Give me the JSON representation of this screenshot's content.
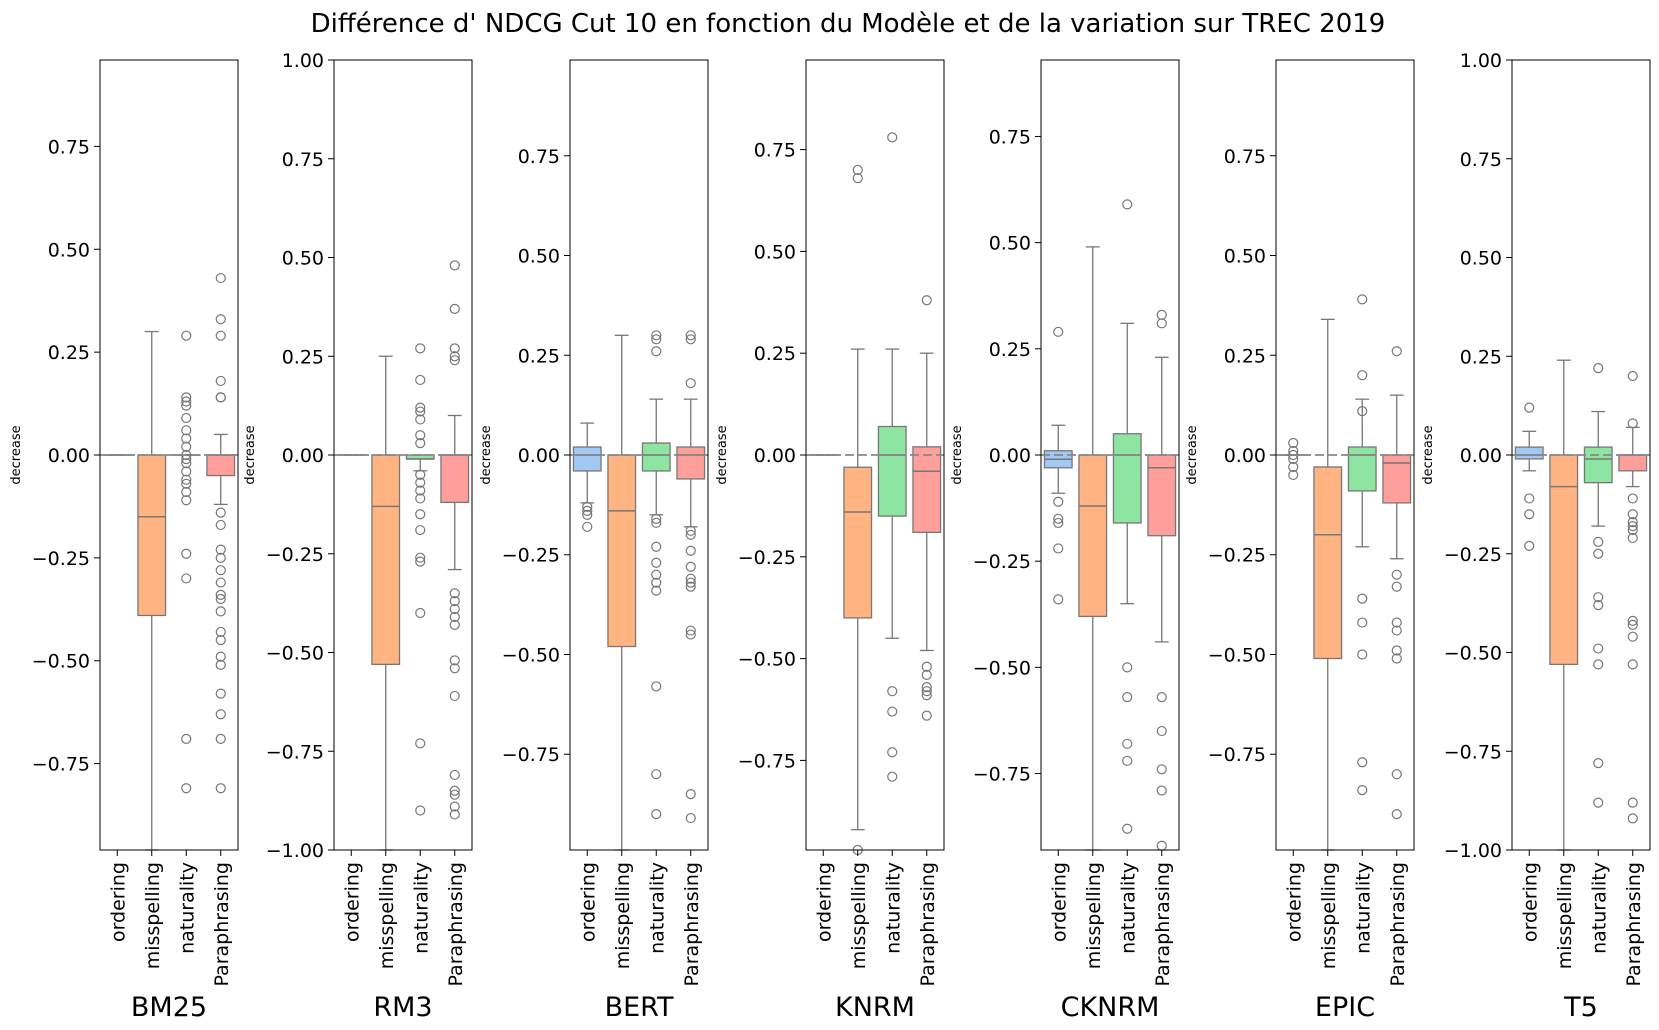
{
  "chart_data": {
    "type": "boxplot",
    "title": "Différence d' NDCG Cut 10 en fonction du Modèle et de la variation sur TREC 2019",
    "ylabel": "decrease",
    "categories": [
      "ordering",
      "misspelling",
      "naturality",
      "Paraphrasing"
    ],
    "colors": {
      "ordering": "#a1c9f4",
      "misspelling": "#ffb482",
      "naturality": "#8de5a1",
      "Paraphrasing": "#ff9f9b"
    },
    "reference_line": 0,
    "panels": [
      {
        "model": "BM25",
        "ylim": [
          -0.96,
          0.96
        ],
        "yticks": [
          -0.75,
          -0.5,
          -0.25,
          0.0,
          0.25,
          0.5,
          0.75
        ],
        "yticklabels": [
          "−0.75",
          "−0.50",
          "−0.25",
          "0.00",
          "0.25",
          "0.50",
          "0.75"
        ],
        "boxes": [
          {
            "category": "ordering",
            "q1": 0,
            "median": 0,
            "q3": 0,
            "whislo": 0,
            "whishi": 0,
            "fliers": []
          },
          {
            "category": "misspelling",
            "q1": -0.39,
            "median": -0.15,
            "q3": 0,
            "whislo": -0.96,
            "whishi": 0.3,
            "fliers": []
          },
          {
            "category": "naturality",
            "q1": 0,
            "median": 0,
            "q3": 0,
            "whislo": 0,
            "whishi": 0,
            "fliers": [
              0.29,
              0.14,
              0.13,
              0.12,
              0.09,
              0.06,
              0.04,
              0.02,
              0.0,
              -0.01,
              -0.02,
              -0.04,
              -0.06,
              -0.07,
              -0.09,
              -0.11,
              -0.24,
              -0.3,
              -0.69,
              -0.81
            ]
          },
          {
            "category": "Paraphrasing",
            "q1": -0.05,
            "median": 0,
            "q3": 0,
            "whislo": -0.12,
            "whishi": 0.05,
            "fliers": [
              0.43,
              0.33,
              0.29,
              0.18,
              0.14,
              0.14,
              -0.14,
              -0.17,
              -0.23,
              -0.25,
              -0.28,
              -0.31,
              -0.34,
              -0.35,
              -0.38,
              -0.43,
              -0.45,
              -0.49,
              -0.51,
              -0.58,
              -0.63,
              -0.69,
              -0.81
            ]
          }
        ]
      },
      {
        "model": "RM3",
        "ylim": [
          -1.0,
          1.0
        ],
        "yticks": [
          -1.0,
          -0.75,
          -0.5,
          -0.25,
          0.0,
          0.25,
          0.5,
          0.75,
          1.0
        ],
        "yticklabels": [
          "−1.00",
          "−0.75",
          "−0.50",
          "−0.25",
          "0.00",
          "0.25",
          "0.50",
          "0.75",
          "1.00"
        ],
        "boxes": [
          {
            "category": "ordering",
            "q1": 0,
            "median": 0,
            "q3": 0,
            "whislo": 0,
            "whishi": 0,
            "fliers": []
          },
          {
            "category": "misspelling",
            "q1": -0.53,
            "median": -0.13,
            "q3": 0,
            "whislo": -1.0,
            "whishi": 0.25,
            "fliers": []
          },
          {
            "category": "naturality",
            "q1": -0.01,
            "median": -0.01,
            "q3": 0,
            "whislo": -0.04,
            "whishi": 0,
            "fliers": [
              0.27,
              0.19,
              0.12,
              0.11,
              0.09,
              0.05,
              0.03,
              -0.05,
              -0.07,
              -0.09,
              -0.11,
              -0.15,
              -0.19,
              -0.26,
              -0.27,
              -0.4,
              -0.73,
              -0.9
            ]
          },
          {
            "category": "Paraphrasing",
            "q1": -0.12,
            "median": 0,
            "q3": 0,
            "whislo": -0.29,
            "whishi": 0.1,
            "fliers": [
              0.48,
              0.37,
              0.27,
              0.25,
              0.24,
              -0.35,
              -0.37,
              -0.39,
              -0.41,
              -0.43,
              -0.52,
              -0.54,
              -0.61,
              -0.81,
              -0.85,
              -0.86,
              -0.89,
              -0.91
            ]
          }
        ]
      },
      {
        "model": "BERT",
        "ylim": [
          -0.99,
          0.99
        ],
        "yticks": [
          -0.75,
          -0.5,
          -0.25,
          0.0,
          0.25,
          0.5,
          0.75
        ],
        "yticklabels": [
          "−0.75",
          "−0.50",
          "−0.25",
          "0.00",
          "0.25",
          "0.50",
          "0.75"
        ],
        "boxes": [
          {
            "category": "ordering",
            "q1": -0.04,
            "median": 0,
            "q3": 0.02,
            "whislo": -0.12,
            "whishi": 0.08,
            "fliers": [
              -0.13,
              -0.14,
              -0.15,
              -0.18
            ]
          },
          {
            "category": "misspelling",
            "q1": -0.48,
            "median": -0.14,
            "q3": 0,
            "whislo": -0.99,
            "whishi": 0.3,
            "fliers": []
          },
          {
            "category": "naturality",
            "q1": -0.04,
            "median": 0,
            "q3": 0.03,
            "whislo": -0.15,
            "whishi": 0.14,
            "fliers": [
              0.3,
              0.29,
              0.26,
              -0.16,
              -0.17,
              -0.23,
              -0.27,
              -0.3,
              -0.32,
              -0.34,
              -0.58,
              -0.8,
              -0.9
            ]
          },
          {
            "category": "Paraphrasing",
            "q1": -0.06,
            "median": 0,
            "q3": 0.02,
            "whislo": -0.18,
            "whishi": 0.14,
            "fliers": [
              0.3,
              0.29,
              0.18,
              -0.19,
              -0.2,
              -0.24,
              -0.28,
              -0.31,
              -0.32,
              -0.33,
              -0.44,
              -0.45,
              -0.85,
              -0.91
            ]
          }
        ]
      },
      {
        "model": "KNRM",
        "ylim": [
          -0.97,
          0.97
        ],
        "yticks": [
          -0.75,
          -0.5,
          -0.25,
          0.0,
          0.25,
          0.5,
          0.75
        ],
        "yticklabels": [
          "−0.75",
          "−0.50",
          "−0.25",
          "0.00",
          "0.25",
          "0.50",
          "0.75"
        ],
        "boxes": [
          {
            "category": "ordering",
            "q1": 0,
            "median": 0,
            "q3": 0,
            "whislo": 0,
            "whishi": 0,
            "fliers": []
          },
          {
            "category": "misspelling",
            "q1": -0.4,
            "median": -0.14,
            "q3": -0.03,
            "whislo": -0.92,
            "whishi": 0.26,
            "fliers": [
              0.7,
              0.68,
              -0.97
            ]
          },
          {
            "category": "naturality",
            "q1": -0.15,
            "median": 0,
            "q3": 0.07,
            "whislo": -0.45,
            "whishi": 0.26,
            "fliers": [
              0.78,
              -0.58,
              -0.63,
              -0.73,
              -0.79
            ]
          },
          {
            "category": "Paraphrasing",
            "q1": -0.19,
            "median": -0.04,
            "q3": 0.02,
            "whislo": -0.48,
            "whishi": 0.25,
            "fliers": [
              0.38,
              -0.52,
              -0.54,
              -0.57,
              -0.58,
              -0.59,
              -0.64
            ]
          }
        ]
      },
      {
        "model": "CKNRM",
        "ylim": [
          -0.93,
          0.93
        ],
        "yticks": [
          -0.75,
          -0.5,
          -0.25,
          0.0,
          0.25,
          0.5,
          0.75
        ],
        "yticklabels": [
          "−0.75",
          "−0.50",
          "−0.25",
          "0.00",
          "0.25",
          "0.50",
          "0.75"
        ],
        "boxes": [
          {
            "category": "ordering",
            "q1": -0.03,
            "median": -0.01,
            "q3": 0.01,
            "whislo": -0.09,
            "whishi": 0.07,
            "fliers": [
              0.29,
              -0.11,
              -0.15,
              -0.16,
              -0.22,
              -0.34
            ]
          },
          {
            "category": "misspelling",
            "q1": -0.38,
            "median": -0.12,
            "q3": 0,
            "whislo": -0.93,
            "whishi": 0.49,
            "fliers": []
          },
          {
            "category": "naturality",
            "q1": -0.16,
            "median": 0,
            "q3": 0.05,
            "whislo": -0.35,
            "whishi": 0.31,
            "fliers": [
              0.59,
              -0.5,
              -0.57,
              -0.68,
              -0.72,
              -0.88
            ]
          },
          {
            "category": "Paraphrasing",
            "q1": -0.19,
            "median": -0.03,
            "q3": 0,
            "whislo": -0.44,
            "whishi": 0.23,
            "fliers": [
              0.33,
              0.31,
              -0.57,
              -0.65,
              -0.74,
              -0.79,
              -0.92
            ]
          }
        ]
      },
      {
        "model": "EPIC",
        "ylim": [
          -0.99,
          0.99
        ],
        "yticks": [
          -0.75,
          -0.5,
          -0.25,
          0.0,
          0.25,
          0.5,
          0.75
        ],
        "yticklabels": [
          "−0.75",
          "−0.50",
          "−0.25",
          "0.00",
          "0.25",
          "0.50",
          "0.75"
        ],
        "boxes": [
          {
            "category": "ordering",
            "q1": 0,
            "median": 0,
            "q3": 0,
            "whislo": 0,
            "whishi": 0,
            "fliers": [
              0.03,
              0.01,
              0.0,
              -0.01,
              -0.03,
              -0.05
            ]
          },
          {
            "category": "misspelling",
            "q1": -0.51,
            "median": -0.2,
            "q3": -0.03,
            "whislo": -0.99,
            "whishi": 0.34,
            "fliers": []
          },
          {
            "category": "naturality",
            "q1": -0.09,
            "median": 0,
            "q3": 0.02,
            "whislo": -0.23,
            "whishi": 0.14,
            "fliers": [
              0.39,
              0.2,
              0.11,
              -0.36,
              -0.42,
              -0.5,
              -0.77,
              -0.84
            ]
          },
          {
            "category": "Paraphrasing",
            "q1": -0.12,
            "median": -0.02,
            "q3": 0,
            "whislo": -0.26,
            "whishi": 0.15,
            "fliers": [
              0.26,
              -0.3,
              -0.33,
              -0.42,
              -0.44,
              -0.49,
              -0.51,
              -0.8,
              -0.9
            ]
          }
        ]
      },
      {
        "model": "T5",
        "ylim": [
          -1.0,
          1.0
        ],
        "yticks": [
          -1.0,
          -0.75,
          -0.5,
          -0.25,
          0.0,
          0.25,
          0.5,
          0.75,
          1.0
        ],
        "yticklabels": [
          "−1.00",
          "−0.75",
          "−0.50",
          "−0.25",
          "0.00",
          "0.25",
          "0.50",
          "0.75",
          "1.00"
        ],
        "boxes": [
          {
            "category": "ordering",
            "q1": -0.01,
            "median": 0,
            "q3": 0.02,
            "whislo": -0.04,
            "whishi": 0.06,
            "fliers": [
              0.12,
              -0.11,
              -0.15,
              -0.23
            ]
          },
          {
            "category": "misspelling",
            "q1": -0.53,
            "median": -0.08,
            "q3": 0,
            "whislo": -1.0,
            "whishi": 0.24,
            "fliers": []
          },
          {
            "category": "naturality",
            "q1": -0.07,
            "median": -0.01,
            "q3": 0.02,
            "whislo": -0.18,
            "whishi": 0.11,
            "fliers": [
              0.22,
              -0.22,
              -0.25,
              -0.36,
              -0.38,
              -0.49,
              -0.53,
              -0.78,
              -0.88
            ]
          },
          {
            "category": "Paraphrasing",
            "q1": -0.04,
            "median": 0,
            "q3": 0,
            "whislo": -0.08,
            "whishi": 0.07,
            "fliers": [
              0.2,
              0.08,
              -0.11,
              -0.15,
              -0.17,
              -0.18,
              -0.19,
              -0.21,
              -0.42,
              -0.43,
              -0.46,
              -0.53,
              -0.88,
              -0.92
            ]
          }
        ]
      }
    ]
  }
}
